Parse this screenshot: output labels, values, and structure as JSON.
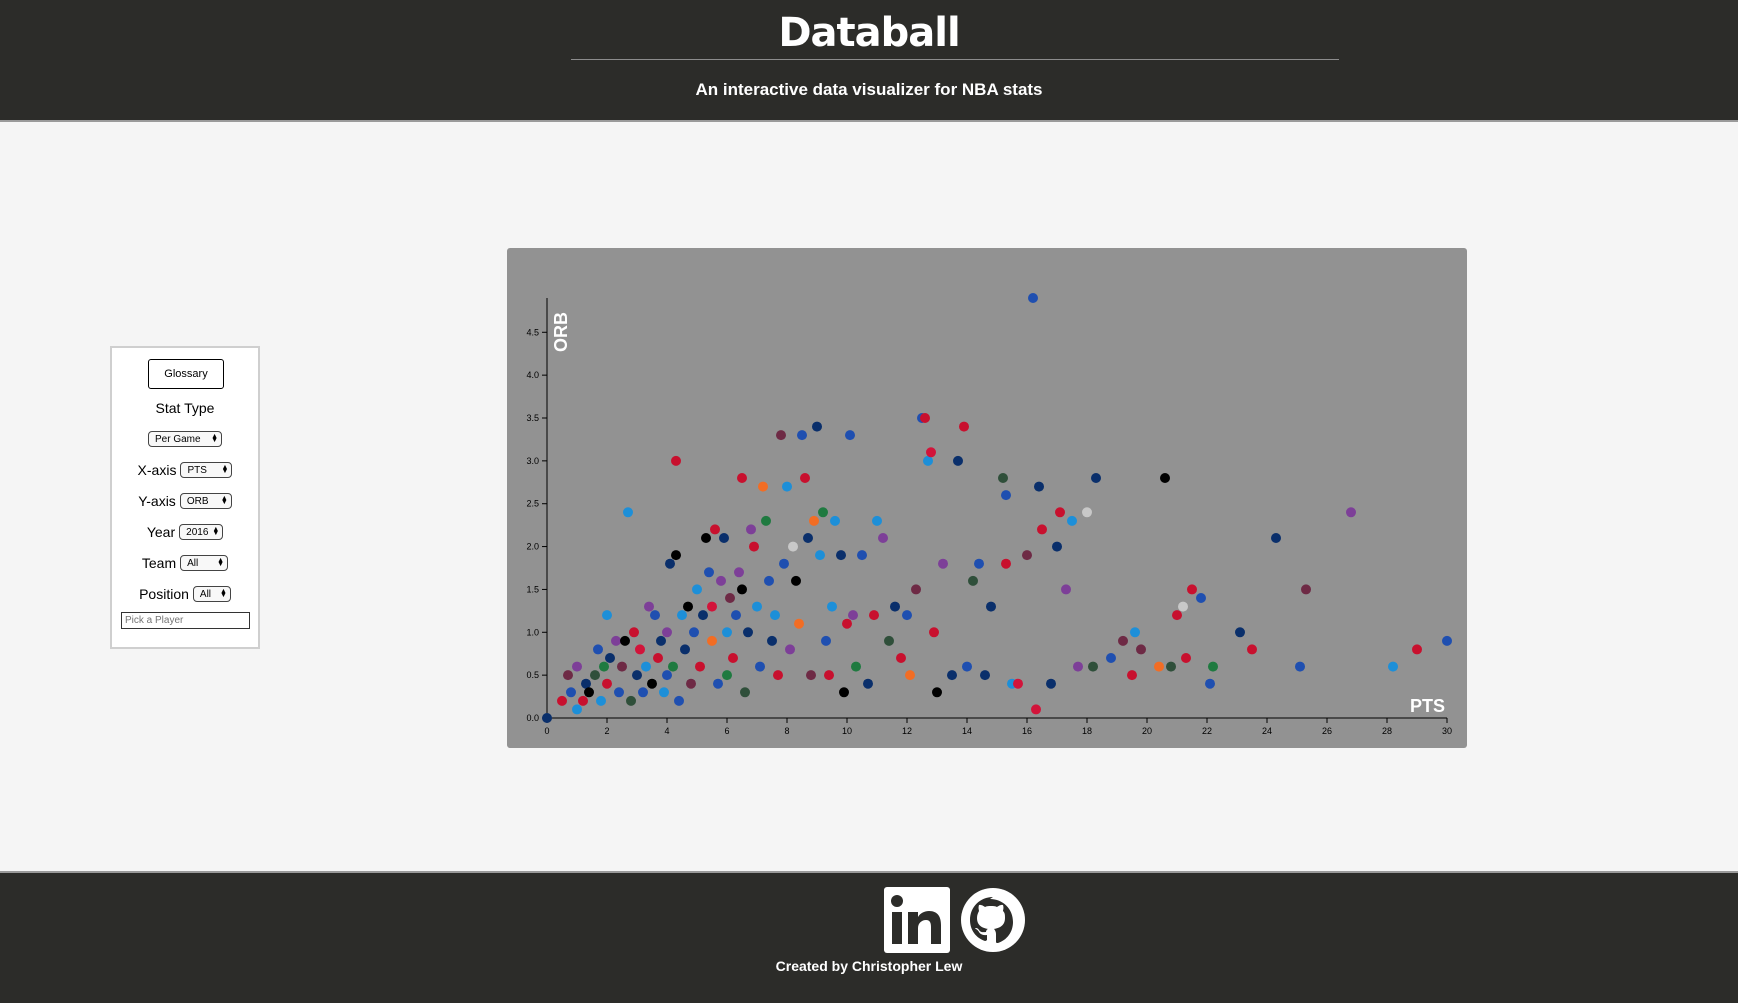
{
  "header": {
    "title": "Databall",
    "subtitle": "An interactive data visualizer for NBA stats"
  },
  "controls": {
    "glossary_label": "Glossary",
    "stat_type_title": "Stat Type",
    "stat_type_value": "Per Game",
    "x_axis_label": "X-axis",
    "x_axis_value": "PTS",
    "y_axis_label": "Y-axis",
    "y_axis_value": "ORB",
    "year_label": "Year",
    "year_value": "2016",
    "team_label": "Team",
    "team_value": "All",
    "position_label": "Position",
    "position_value": "All",
    "player_placeholder": "Pick a Player"
  },
  "footer": {
    "credit": "Created by Christopher Lew",
    "icons": [
      "linkedin-icon",
      "github-icon"
    ]
  },
  "colors": {
    "header_bg": "#2c2c29",
    "chart_bg": "#929292",
    "page_bg": "#f5f5f5"
  },
  "chart_data": {
    "type": "scatter",
    "xlabel": "PTS",
    "ylabel": "ORB",
    "xlim": [
      0,
      30
    ],
    "ylim": [
      0,
      4.9
    ],
    "xticks": [
      "0",
      "2",
      "4",
      "6",
      "8",
      "10",
      "12",
      "14",
      "16",
      "18",
      "20",
      "22",
      "24",
      "26",
      "28",
      "30"
    ],
    "yticks": [
      "0.0",
      "0.5",
      "1.0",
      "1.5",
      "2.0",
      "2.5",
      "3.0",
      "3.5",
      "4.0",
      "4.5"
    ],
    "palette": [
      "#0a2f6b",
      "#1f4fb0",
      "#c8102e",
      "#d2143a",
      "#6e2a45",
      "#7d3f98",
      "#1d8fd8",
      "#f26d24",
      "#1f7a40",
      "#2f4f3a",
      "#000000",
      "#c8c8c8",
      "#5a2d82",
      "#e03a3e"
    ],
    "points": [
      [
        0,
        0,
        0
      ],
      [
        0.5,
        0.2,
        2
      ],
      [
        0.7,
        0.5,
        4
      ],
      [
        0.8,
        0.3,
        1
      ],
      [
        1.0,
        0.6,
        5
      ],
      [
        1.0,
        0.1,
        6
      ],
      [
        1.2,
        0.2,
        2
      ],
      [
        1.3,
        0.4,
        0
      ],
      [
        1.4,
        0.3,
        10
      ],
      [
        1.6,
        0.5,
        9
      ],
      [
        1.7,
        0.8,
        1
      ],
      [
        1.8,
        0.2,
        6
      ],
      [
        1.9,
        0.6,
        8
      ],
      [
        2.0,
        1.2,
        6
      ],
      [
        2.0,
        0.4,
        2
      ],
      [
        2.1,
        0.7,
        0
      ],
      [
        2.3,
        0.9,
        5
      ],
      [
        2.4,
        0.3,
        1
      ],
      [
        2.5,
        0.6,
        4
      ],
      [
        2.6,
        0.9,
        10
      ],
      [
        2.7,
        2.4,
        6
      ],
      [
        2.8,
        0.2,
        9
      ],
      [
        2.9,
        1.0,
        2
      ],
      [
        3.0,
        0.5,
        0
      ],
      [
        3.1,
        0.8,
        3
      ],
      [
        3.2,
        0.3,
        1
      ],
      [
        3.3,
        0.6,
        6
      ],
      [
        3.4,
        1.3,
        5
      ],
      [
        3.5,
        0.4,
        10
      ],
      [
        3.6,
        1.2,
        1
      ],
      [
        3.7,
        0.7,
        2
      ],
      [
        3.8,
        0.9,
        0
      ],
      [
        3.9,
        0.3,
        6
      ],
      [
        4.0,
        1.0,
        5
      ],
      [
        4.0,
        0.5,
        1
      ],
      [
        4.1,
        1.8,
        0
      ],
      [
        4.2,
        0.6,
        8
      ],
      [
        4.3,
        3.0,
        2
      ],
      [
        4.3,
        1.9,
        10
      ],
      [
        4.4,
        0.2,
        1
      ],
      [
        4.5,
        1.2,
        6
      ],
      [
        4.6,
        0.8,
        0
      ],
      [
        4.7,
        1.3,
        10
      ],
      [
        4.8,
        0.4,
        4
      ],
      [
        4.9,
        1.0,
        1
      ],
      [
        5.0,
        1.5,
        6
      ],
      [
        5.1,
        0.6,
        2
      ],
      [
        5.2,
        1.2,
        0
      ],
      [
        5.3,
        2.1,
        10
      ],
      [
        5.4,
        1.7,
        1
      ],
      [
        5.5,
        0.9,
        7
      ],
      [
        5.5,
        1.3,
        3
      ],
      [
        5.6,
        2.2,
        2
      ],
      [
        5.7,
        0.4,
        1
      ],
      [
        5.8,
        1.6,
        5
      ],
      [
        5.9,
        2.1,
        0
      ],
      [
        6.0,
        1.0,
        6
      ],
      [
        6.0,
        0.5,
        8
      ],
      [
        6.1,
        1.4,
        4
      ],
      [
        6.2,
        0.7,
        2
      ],
      [
        6.3,
        1.2,
        1
      ],
      [
        6.4,
        1.7,
        5
      ],
      [
        6.5,
        2.8,
        2
      ],
      [
        6.5,
        1.5,
        10
      ],
      [
        6.6,
        0.3,
        9
      ],
      [
        6.7,
        1.0,
        0
      ],
      [
        6.8,
        2.2,
        5
      ],
      [
        6.9,
        2.0,
        2
      ],
      [
        7.0,
        1.3,
        6
      ],
      [
        7.1,
        0.6,
        1
      ],
      [
        7.2,
        2.7,
        7
      ],
      [
        7.3,
        2.3,
        8
      ],
      [
        7.4,
        1.6,
        1
      ],
      [
        7.5,
        0.9,
        0
      ],
      [
        7.6,
        1.2,
        6
      ],
      [
        7.7,
        0.5,
        2
      ],
      [
        7.8,
        3.3,
        4
      ],
      [
        7.9,
        1.8,
        1
      ],
      [
        8.0,
        2.7,
        6
      ],
      [
        8.1,
        0.8,
        5
      ],
      [
        8.2,
        2.0,
        11
      ],
      [
        8.3,
        1.6,
        10
      ],
      [
        8.4,
        1.1,
        7
      ],
      [
        8.5,
        3.3,
        1
      ],
      [
        8.6,
        2.8,
        2
      ],
      [
        8.7,
        2.1,
        0
      ],
      [
        8.8,
        0.5,
        4
      ],
      [
        8.9,
        2.3,
        7
      ],
      [
        9.0,
        3.4,
        0
      ],
      [
        9.1,
        1.9,
        6
      ],
      [
        9.2,
        2.4,
        8
      ],
      [
        9.3,
        0.9,
        1
      ],
      [
        9.4,
        0.5,
        2
      ],
      [
        9.5,
        1.3,
        6
      ],
      [
        9.6,
        2.3,
        6
      ],
      [
        9.8,
        1.9,
        0
      ],
      [
        9.9,
        0.3,
        10
      ],
      [
        10.0,
        1.1,
        2
      ],
      [
        10.1,
        3.3,
        1
      ],
      [
        10.2,
        1.2,
        5
      ],
      [
        10.3,
        0.6,
        8
      ],
      [
        10.5,
        1.9,
        1
      ],
      [
        10.7,
        0.4,
        0
      ],
      [
        10.9,
        1.2,
        2
      ],
      [
        11.0,
        2.3,
        6
      ],
      [
        11.2,
        2.1,
        5
      ],
      [
        11.4,
        0.9,
        9
      ],
      [
        11.6,
        1.3,
        0
      ],
      [
        11.8,
        0.7,
        2
      ],
      [
        12.0,
        1.2,
        1
      ],
      [
        12.1,
        0.5,
        7
      ],
      [
        12.3,
        1.5,
        4
      ],
      [
        12.5,
        3.5,
        1
      ],
      [
        12.6,
        3.5,
        2
      ],
      [
        12.7,
        3.0,
        6
      ],
      [
        12.8,
        3.1,
        3
      ],
      [
        12.9,
        1.0,
        2
      ],
      [
        13.0,
        0.3,
        10
      ],
      [
        13.2,
        1.8,
        5
      ],
      [
        13.5,
        0.5,
        0
      ],
      [
        13.7,
        3.0,
        0
      ],
      [
        13.9,
        3.4,
        2
      ],
      [
        14.0,
        0.6,
        1
      ],
      [
        14.2,
        1.6,
        9
      ],
      [
        14.4,
        1.8,
        1
      ],
      [
        14.6,
        0.5,
        0
      ],
      [
        14.8,
        1.3,
        0
      ],
      [
        15.2,
        2.8,
        9
      ],
      [
        15.3,
        2.6,
        1
      ],
      [
        15.3,
        1.8,
        2
      ],
      [
        15.5,
        0.4,
        6
      ],
      [
        15.7,
        0.4,
        3
      ],
      [
        16.0,
        1.9,
        4
      ],
      [
        16.2,
        4.9,
        1
      ],
      [
        16.3,
        0.1,
        3
      ],
      [
        16.4,
        2.7,
        0
      ],
      [
        16.5,
        2.2,
        2
      ],
      [
        16.8,
        0.4,
        0
      ],
      [
        17.0,
        2.0,
        0
      ],
      [
        17.1,
        2.4,
        2
      ],
      [
        17.3,
        1.5,
        5
      ],
      [
        17.5,
        2.3,
        6
      ],
      [
        17.7,
        0.6,
        5
      ],
      [
        18.0,
        2.4,
        11
      ],
      [
        18.2,
        0.6,
        9
      ],
      [
        18.3,
        2.8,
        0
      ],
      [
        18.8,
        0.7,
        1
      ],
      [
        19.2,
        0.9,
        4
      ],
      [
        19.5,
        0.5,
        2
      ],
      [
        19.6,
        1.0,
        6
      ],
      [
        19.8,
        0.8,
        4
      ],
      [
        20.4,
        0.6,
        7
      ],
      [
        20.6,
        2.8,
        10
      ],
      [
        20.8,
        0.6,
        9
      ],
      [
        21.0,
        1.2,
        2
      ],
      [
        21.2,
        1.3,
        11
      ],
      [
        21.3,
        0.7,
        2
      ],
      [
        21.5,
        1.5,
        2
      ],
      [
        21.8,
        1.4,
        1
      ],
      [
        22.1,
        0.4,
        1
      ],
      [
        22.2,
        0.6,
        8
      ],
      [
        23.1,
        1.0,
        0
      ],
      [
        23.5,
        0.8,
        2
      ],
      [
        24.3,
        2.1,
        0
      ],
      [
        25.1,
        0.6,
        1
      ],
      [
        25.3,
        1.5,
        4
      ],
      [
        26.8,
        2.4,
        5
      ],
      [
        28.2,
        0.6,
        6
      ],
      [
        29.0,
        0.8,
        2
      ],
      [
        30.0,
        0.9,
        1
      ]
    ]
  }
}
